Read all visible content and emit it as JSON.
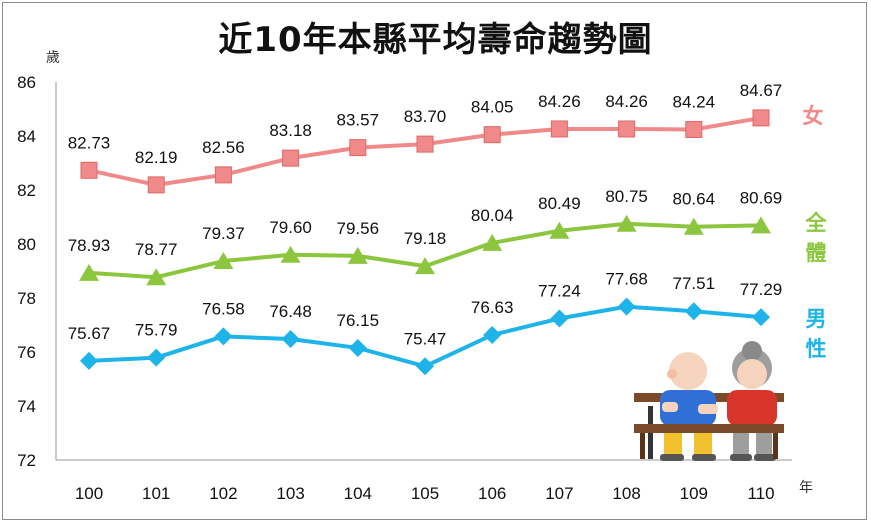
{
  "title": "近10年本縣平均壽命趨勢圖",
  "chart_data": {
    "type": "line",
    "title": "近10年本縣平均壽命趨勢圖",
    "ylabel": "歲",
    "xlabel": "年",
    "x": [
      "100",
      "101",
      "102",
      "103",
      "104",
      "105",
      "106",
      "107",
      "108",
      "109",
      "110"
    ],
    "ylim": [
      72,
      86
    ],
    "yticks": [
      "72",
      "74",
      "76",
      "78",
      "80",
      "82",
      "84",
      "86"
    ],
    "grid": false,
    "series": [
      {
        "name": "女",
        "color": "#f08a8a",
        "marker": "square",
        "values": [
          82.73,
          82.19,
          82.56,
          83.18,
          83.57,
          83.7,
          84.05,
          84.26,
          84.26,
          84.24,
          84.67
        ],
        "labels": [
          "82.73",
          "82.19",
          "82.56",
          "83.18",
          "83.57",
          "83.70",
          "84.05",
          "84.26",
          "84.26",
          "84.24",
          "84.67"
        ]
      },
      {
        "name": "全體",
        "color": "#8cc63f",
        "marker": "triangle",
        "values": [
          78.93,
          78.77,
          79.37,
          79.6,
          79.56,
          79.18,
          80.04,
          80.49,
          80.75,
          80.64,
          80.69
        ],
        "labels": [
          "78.93",
          "78.77",
          "79.37",
          "79.60",
          "79.56",
          "79.18",
          "80.04",
          "80.49",
          "80.75",
          "80.64",
          "80.69"
        ]
      },
      {
        "name": "男性",
        "color": "#1eb4ea",
        "marker": "diamond",
        "values": [
          75.67,
          75.79,
          76.58,
          76.48,
          76.15,
          75.47,
          76.63,
          77.24,
          77.68,
          77.51,
          77.29
        ],
        "labels": [
          "75.67",
          "75.79",
          "76.58",
          "76.48",
          "76.15",
          "75.47",
          "76.63",
          "77.24",
          "77.68",
          "77.51",
          "77.29"
        ]
      }
    ],
    "legend_placement": "right",
    "series_labels": [
      {
        "text": "女",
        "color": "#f08a8a"
      },
      {
        "text": "全體",
        "color": "#8cc63f"
      },
      {
        "text": "男性",
        "color": "#1eb4ea"
      }
    ],
    "illustration": "elderly-couple-on-bench"
  }
}
